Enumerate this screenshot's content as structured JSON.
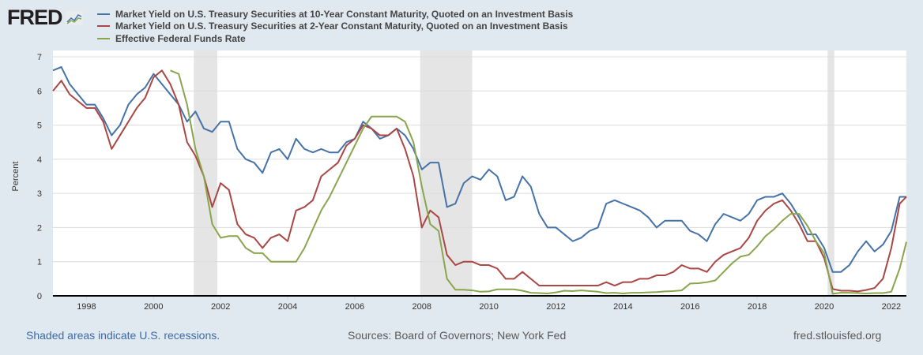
{
  "logo": {
    "text": "FRED"
  },
  "chart_data": {
    "type": "line",
    "ylabel": "Percent",
    "xlabel": "",
    "ylim": [
      0,
      7
    ],
    "xlim": [
      1997.0,
      2022.45
    ],
    "yticks": [
      0,
      1,
      2,
      3,
      4,
      5,
      6,
      7
    ],
    "xticks": [
      1998,
      2000,
      2002,
      2004,
      2006,
      2008,
      2010,
      2012,
      2014,
      2016,
      2018,
      2020,
      2022
    ],
    "grid": true,
    "legend_position": "top",
    "recessions": [
      [
        2001.2,
        2001.9
      ],
      [
        2007.95,
        2009.5
      ],
      [
        2020.1,
        2020.3
      ]
    ],
    "series": [
      {
        "name": "Market Yield on U.S. Treasury Securities at 10-Year Constant Maturity, Quoted on an Investment Basis",
        "color": "#4572a7",
        "x_start": 1997.0,
        "step": 0.25,
        "values": [
          6.6,
          6.7,
          6.2,
          5.9,
          5.6,
          5.6,
          5.2,
          4.7,
          5.0,
          5.6,
          5.9,
          6.1,
          6.5,
          6.2,
          5.9,
          5.6,
          5.1,
          5.4,
          4.9,
          4.8,
          5.1,
          5.1,
          4.3,
          4.0,
          3.9,
          3.6,
          4.2,
          4.3,
          4.0,
          4.6,
          4.3,
          4.2,
          4.3,
          4.2,
          4.2,
          4.5,
          4.6,
          5.1,
          4.9,
          4.6,
          4.7,
          4.9,
          4.7,
          4.3,
          3.7,
          3.9,
          3.9,
          2.6,
          2.7,
          3.3,
          3.5,
          3.4,
          3.7,
          3.5,
          2.8,
          2.9,
          3.5,
          3.2,
          2.4,
          2.0,
          2.0,
          1.8,
          1.6,
          1.7,
          1.9,
          2.0,
          2.7,
          2.8,
          2.7,
          2.6,
          2.5,
          2.3,
          2.0,
          2.2,
          2.2,
          2.2,
          1.9,
          1.8,
          1.6,
          2.1,
          2.4,
          2.3,
          2.2,
          2.4,
          2.8,
          2.9,
          2.9,
          3.0,
          2.7,
          2.3,
          1.8,
          1.8,
          1.4,
          0.7,
          0.7,
          0.9,
          1.3,
          1.6,
          1.3,
          1.5,
          1.9,
          2.9,
          2.9
        ]
      },
      {
        "name": "Market Yield on U.S. Treasury Securities at 2-Year Constant Maturity, Quoted on an Investment Basis",
        "color": "#aa4643",
        "x_start": 1997.0,
        "step": 0.25,
        "values": [
          6.0,
          6.3,
          5.9,
          5.7,
          5.5,
          5.5,
          5.1,
          4.3,
          4.7,
          5.1,
          5.5,
          5.8,
          6.4,
          6.6,
          6.2,
          5.6,
          4.5,
          4.1,
          3.5,
          2.6,
          3.3,
          3.1,
          2.1,
          1.8,
          1.7,
          1.4,
          1.7,
          1.8,
          1.6,
          2.5,
          2.6,
          2.8,
          3.5,
          3.7,
          3.9,
          4.4,
          4.6,
          5.0,
          4.9,
          4.7,
          4.7,
          4.9,
          4.3,
          3.5,
          2.0,
          2.5,
          2.3,
          1.2,
          0.9,
          1.0,
          1.0,
          0.9,
          0.9,
          0.8,
          0.5,
          0.5,
          0.7,
          0.5,
          0.3,
          0.3,
          0.3,
          0.3,
          0.3,
          0.3,
          0.3,
          0.3,
          0.4,
          0.3,
          0.4,
          0.4,
          0.5,
          0.5,
          0.6,
          0.6,
          0.7,
          0.9,
          0.8,
          0.8,
          0.7,
          1.0,
          1.2,
          1.3,
          1.4,
          1.7,
          2.2,
          2.5,
          2.7,
          2.8,
          2.5,
          2.1,
          1.6,
          1.6,
          1.1,
          0.2,
          0.15,
          0.15,
          0.13,
          0.17,
          0.23,
          0.5,
          1.4,
          2.7,
          2.9
        ]
      },
      {
        "name": "Effective Federal Funds Rate",
        "color": "#89a54e",
        "x_start": 2000.5,
        "step": 0.25,
        "values": [
          6.6,
          6.5,
          5.6,
          4.3,
          3.5,
          2.1,
          1.7,
          1.75,
          1.75,
          1.4,
          1.25,
          1.25,
          1.0,
          1.0,
          1.0,
          1.0,
          1.4,
          1.95,
          2.5,
          2.9,
          3.4,
          3.9,
          4.4,
          4.9,
          5.25,
          5.25,
          5.25,
          5.25,
          5.1,
          4.5,
          3.2,
          2.1,
          1.9,
          0.5,
          0.18,
          0.18,
          0.16,
          0.12,
          0.13,
          0.19,
          0.19,
          0.19,
          0.15,
          0.09,
          0.08,
          0.07,
          0.1,
          0.15,
          0.14,
          0.16,
          0.14,
          0.12,
          0.08,
          0.09,
          0.07,
          0.09,
          0.09,
          0.1,
          0.11,
          0.13,
          0.14,
          0.16,
          0.36,
          0.37,
          0.4,
          0.45,
          0.7,
          0.95,
          1.15,
          1.2,
          1.45,
          1.75,
          1.95,
          2.2,
          2.4,
          2.4,
          2.05,
          1.6,
          1.25,
          0.06,
          0.09,
          0.09,
          0.08,
          0.07,
          0.08,
          0.08,
          0.12,
          0.8,
          1.58
        ]
      }
    ]
  },
  "footer": {
    "recession_note": "Shaded areas indicate U.S. recessions.",
    "sources": "Sources: Board of Governors; New York Fed",
    "site": "fred.stlouisfed.org"
  }
}
